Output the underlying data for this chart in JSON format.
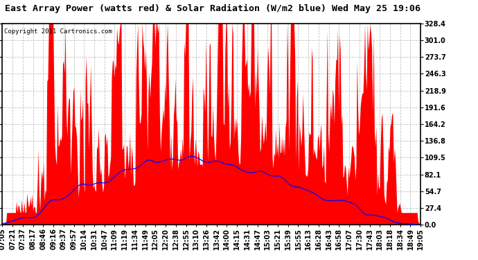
{
  "title": "East Array Power (watts red) & Solar Radiation (W/m2 blue) Wed May 25 19:06",
  "copyright_text": "Copyright 2011 Cartronics.com",
  "yticks": [
    0.0,
    27.4,
    54.7,
    82.1,
    109.5,
    136.8,
    164.2,
    191.6,
    218.9,
    246.3,
    273.7,
    301.0,
    328.4
  ],
  "ymax": 328.4,
  "ymin": 0.0,
  "background_color": "#ffffff",
  "plot_background": "#ffffff",
  "red_color": "#ff0000",
  "blue_color": "#0000ff",
  "grid_color": "#bbbbbb",
  "title_fontsize": 9.5,
  "copyright_fontsize": 6.5,
  "tick_fontsize": 7,
  "x_labels": [
    "07:05",
    "07:21",
    "07:37",
    "08:17",
    "08:46",
    "09:16",
    "09:37",
    "09:57",
    "10:14",
    "10:31",
    "10:47",
    "11:09",
    "11:19",
    "11:34",
    "11:49",
    "12:05",
    "12:20",
    "12:38",
    "12:55",
    "13:10",
    "13:26",
    "13:42",
    "14:00",
    "14:15",
    "14:31",
    "14:47",
    "15:03",
    "15:21",
    "15:39",
    "15:55",
    "16:13",
    "16:28",
    "16:43",
    "16:58",
    "17:07",
    "17:30",
    "17:43",
    "18:03",
    "18:18",
    "18:34",
    "18:49",
    "19:05"
  ]
}
